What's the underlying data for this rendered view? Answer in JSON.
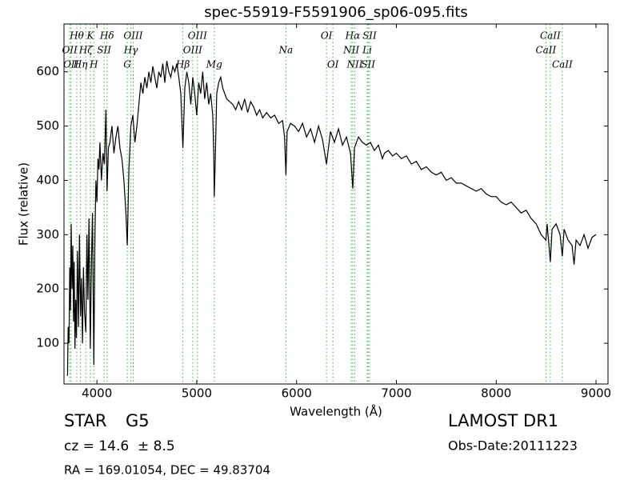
{
  "chart_data": {
    "type": "line",
    "title": "spec-55919-F5591906_sp06-095.fits",
    "xlabel": "Wavelength (Å)",
    "ylabel": "Flux (relative)",
    "color": "#000000",
    "line_color": "#33bb33",
    "xlim": [
      3670,
      9120
    ],
    "ylim": [
      25,
      688
    ],
    "xticks": [
      4000,
      5000,
      6000,
      7000,
      8000,
      9000
    ],
    "yticks": [
      100,
      200,
      300,
      400,
      500,
      600
    ],
    "x": [
      3705,
      3712,
      3720,
      3728,
      3735,
      3742,
      3750,
      3758,
      3765,
      3772,
      3780,
      3788,
      3795,
      3805,
      3815,
      3825,
      3835,
      3845,
      3855,
      3865,
      3875,
      3889,
      3900,
      3910,
      3920,
      3934,
      3945,
      3955,
      3969,
      3980,
      3990,
      4000,
      4010,
      4020,
      4030,
      4045,
      4060,
      4075,
      4090,
      4101,
      4115,
      4130,
      4150,
      4170,
      4190,
      4210,
      4230,
      4250,
      4270,
      4290,
      4304,
      4320,
      4340,
      4360,
      4380,
      4400,
      4420,
      4440,
      4460,
      4480,
      4500,
      4520,
      4540,
      4560,
      4580,
      4600,
      4620,
      4640,
      4660,
      4680,
      4700,
      4720,
      4740,
      4760,
      4780,
      4800,
      4820,
      4840,
      4861,
      4880,
      4900,
      4920,
      4940,
      4960,
      4980,
      5000,
      5020,
      5040,
      5060,
      5080,
      5100,
      5120,
      5140,
      5160,
      5170,
      5175,
      5183,
      5200,
      5220,
      5240,
      5260,
      5280,
      5300,
      5330,
      5360,
      5390,
      5420,
      5450,
      5480,
      5510,
      5540,
      5570,
      5600,
      5630,
      5660,
      5700,
      5740,
      5780,
      5820,
      5860,
      5880,
      5893,
      5905,
      5940,
      5980,
      6020,
      6060,
      6100,
      6140,
      6180,
      6220,
      6260,
      6300,
      6340,
      6380,
      6420,
      6460,
      6500,
      6540,
      6563,
      6580,
      6620,
      6660,
      6700,
      6740,
      6780,
      6820,
      6860,
      6880,
      6920,
      6960,
      7000,
      7050,
      7100,
      7150,
      7200,
      7250,
      7300,
      7350,
      7400,
      7450,
      7500,
      7550,
      7600,
      7650,
      7700,
      7750,
      7800,
      7850,
      7900,
      7950,
      8000,
      8050,
      8100,
      8150,
      8200,
      8250,
      8300,
      8350,
      8400,
      8450,
      8498,
      8510,
      8542,
      8560,
      8600,
      8640,
      8662,
      8680,
      8720,
      8760,
      8780,
      8800,
      8840,
      8880,
      8920,
      8960,
      9000
    ],
    "values": [
      40,
      130,
      100,
      240,
      160,
      320,
      200,
      280,
      140,
      250,
      90,
      180,
      110,
      270,
      130,
      300,
      150,
      220,
      100,
      240,
      160,
      120,
      300,
      180,
      330,
      90,
      250,
      340,
      60,
      300,
      400,
      360,
      440,
      420,
      470,
      400,
      450,
      430,
      530,
      380,
      460,
      470,
      500,
      450,
      480,
      500,
      460,
      440,
      400,
      340,
      280,
      420,
      500,
      520,
      470,
      500,
      540,
      580,
      560,
      590,
      570,
      600,
      580,
      610,
      590,
      570,
      600,
      590,
      615,
      580,
      620,
      600,
      590,
      610,
      600,
      615,
      590,
      560,
      460,
      570,
      600,
      580,
      540,
      590,
      560,
      520,
      580,
      560,
      600,
      550,
      580,
      540,
      560,
      520,
      450,
      370,
      420,
      560,
      580,
      590,
      570,
      560,
      550,
      545,
      540,
      530,
      545,
      530,
      550,
      525,
      545,
      535,
      520,
      530,
      515,
      525,
      515,
      520,
      505,
      510,
      480,
      410,
      490,
      505,
      500,
      490,
      505,
      480,
      495,
      470,
      500,
      475,
      430,
      490,
      470,
      495,
      465,
      480,
      450,
      385,
      460,
      480,
      470,
      465,
      470,
      455,
      465,
      440,
      450,
      455,
      445,
      450,
      440,
      445,
      430,
      435,
      420,
      425,
      415,
      410,
      415,
      400,
      405,
      395,
      395,
      390,
      385,
      380,
      385,
      375,
      370,
      370,
      360,
      355,
      360,
      350,
      340,
      345,
      330,
      320,
      300,
      290,
      320,
      250,
      310,
      320,
      300,
      260,
      310,
      290,
      280,
      245,
      290,
      280,
      300,
      275,
      295,
      300
    ],
    "annotations": [
      [
        {
          "x": 3798,
          "label": "Hθ"
        },
        {
          "x": 3934,
          "label": "K"
        },
        {
          "x": 4101,
          "label": "Hδ"
        },
        {
          "x": 4363,
          "label": "OIII"
        },
        {
          "x": 5007,
          "label": "OIII"
        },
        {
          "x": 6300,
          "label": "OI"
        },
        {
          "x": 6563,
          "label": "Hα"
        },
        {
          "x": 6731,
          "label": "SII"
        },
        {
          "x": 8542,
          "label": "CaII"
        }
      ],
      [
        {
          "x": 3727,
          "label": "OII"
        },
        {
          "x": 3889,
          "label": "Hζ"
        },
        {
          "x": 4072,
          "label": "SII"
        },
        {
          "x": 4340,
          "label": "Hγ"
        },
        {
          "x": 4959,
          "label": "OIII"
        },
        {
          "x": 5893,
          "label": "Na"
        },
        {
          "x": 6548,
          "label": "NII"
        },
        {
          "x": 6708,
          "label": "Li"
        },
        {
          "x": 8498,
          "label": "CaII"
        }
      ],
      [
        {
          "x": 3740,
          "label": "OII"
        },
        {
          "x": 3835,
          "label": "Hη"
        },
        {
          "x": 3969,
          "label": "H"
        },
        {
          "x": 4304,
          "label": "G"
        },
        {
          "x": 4861,
          "label": "Hβ"
        },
        {
          "x": 5175,
          "label": "Mg"
        },
        {
          "x": 6364,
          "label": "OI"
        },
        {
          "x": 6583,
          "label": "NII"
        },
        {
          "x": 6717,
          "label": "SII"
        },
        {
          "x": 8662,
          "label": "CaII"
        }
      ]
    ]
  },
  "footer": {
    "object": "STAR",
    "subclass": "G5",
    "survey": "LAMOST DR1",
    "redshift": "cz = 14.6  ± 8.5",
    "obs_date": "Obs-Date:20111223",
    "coords": "RA = 169.01054, DEC = 49.83704"
  }
}
